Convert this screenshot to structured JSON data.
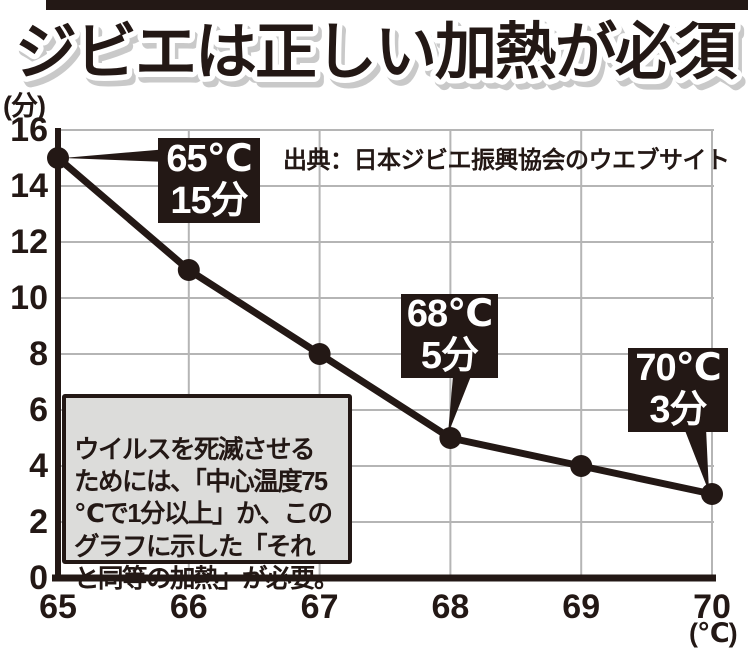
{
  "title": "ジビエは正しい加熱が必須",
  "source": "出典：日本ジビエ振興協会のウエブサイト",
  "y_axis_unit": "(分)",
  "x_axis_unit": "(℃)",
  "note_text": "ウイルスを死滅させる\nためには、「中心温度75\n℃で1分以上」か、この\nグラフに示した「それ\nと同等の加熱」が必要。",
  "callouts": [
    {
      "temp": "65℃",
      "time": "15分"
    },
    {
      "temp": "68℃",
      "time": "5分"
    },
    {
      "temp": "70℃",
      "time": "3分"
    }
  ],
  "chart_data": {
    "type": "line",
    "x": [
      65,
      66,
      67,
      68,
      69,
      70
    ],
    "y": [
      15,
      11,
      8,
      5,
      4,
      3
    ],
    "x_ticks": [
      65,
      66,
      67,
      68,
      69,
      70
    ],
    "y_ticks": [
      0,
      2,
      4,
      6,
      8,
      10,
      12,
      14,
      16
    ],
    "xlim": [
      65,
      70
    ],
    "ylim": [
      0,
      16
    ],
    "xlabel": "(℃)",
    "ylabel": "(分)",
    "grid": true,
    "legend": false,
    "annotations": [
      {
        "x": 65,
        "y": 15,
        "label": "65℃ 15分"
      },
      {
        "x": 68,
        "y": 5,
        "label": "68℃ 5分"
      },
      {
        "x": 70,
        "y": 3,
        "label": "70℃ 3分"
      }
    ]
  },
  "colors": {
    "ink": "#231815",
    "grid": "#b5b5b5",
    "note_bg": "#dcdcda",
    "callout_bg": "#231815",
    "callout_text": "#ffffff",
    "title_outline": "#ffffff",
    "title_shadow": "#c9c9c9"
  }
}
